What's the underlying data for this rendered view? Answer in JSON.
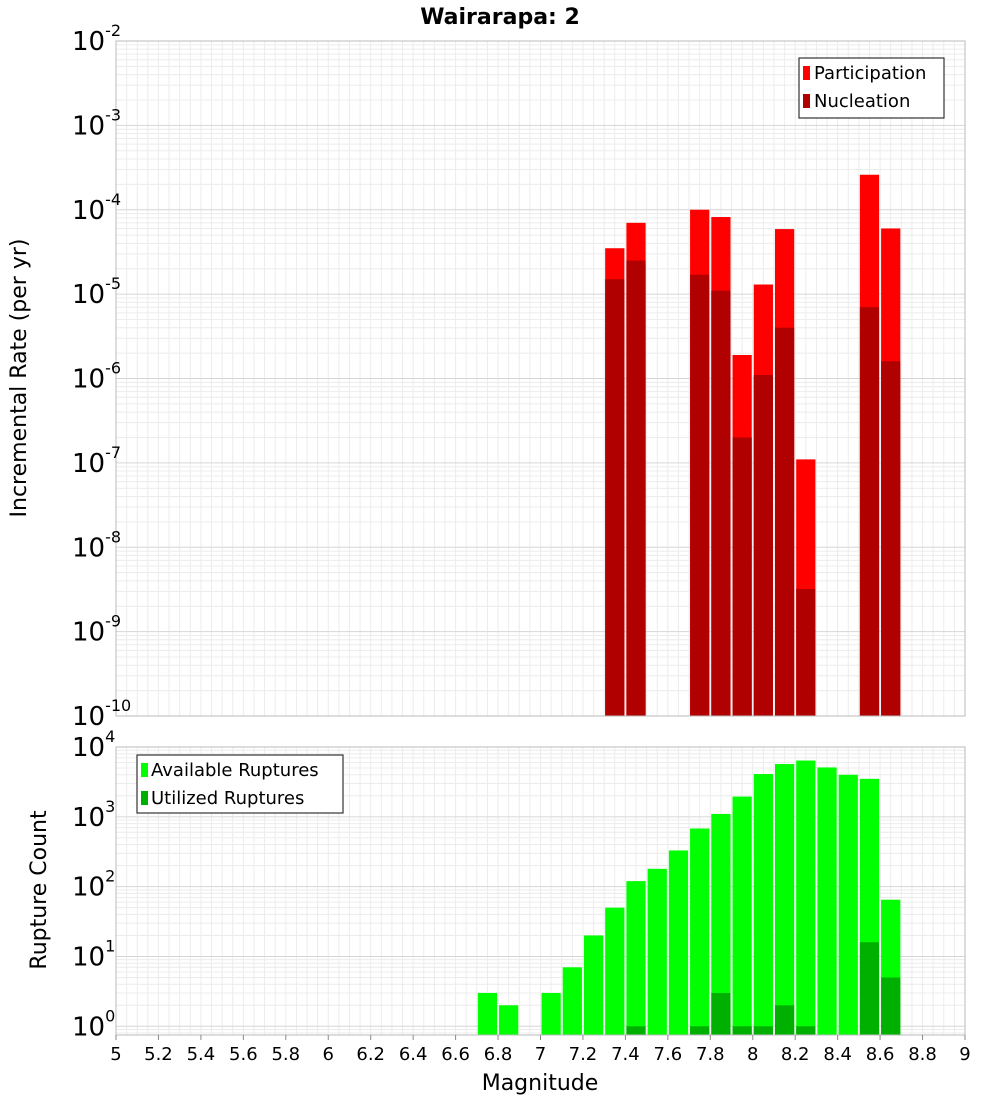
{
  "chart_data": [
    {
      "type": "bar",
      "title": "Wairarapa: 2",
      "xlabel": "Magnitude",
      "ylabel": "Incremental Rate (per yr)",
      "yscale": "log",
      "ylim": [
        1e-10,
        0.01
      ],
      "xlim": [
        5,
        9
      ],
      "x_ticks": [
        5,
        5.2,
        5.4,
        5.6,
        5.8,
        6,
        6.2,
        6.4,
        6.6,
        6.8,
        7,
        7.2,
        7.4,
        7.6,
        7.8,
        8,
        8.2,
        8.4,
        8.6,
        8.8,
        9
      ],
      "x_tick_labels": [
        "5",
        "5.2",
        "5.4",
        "5.6",
        "5.8",
        "6",
        "6.2",
        "6.4",
        "6.6",
        "6.8",
        "7",
        "7.2",
        "7.4",
        "7.6",
        "7.8",
        "8",
        "8.2",
        "8.4",
        "8.6",
        "8.8",
        "9"
      ],
      "y_ticks": [
        {
          "base": "10",
          "exp": "-2"
        },
        {
          "base": "10",
          "exp": "-3"
        },
        {
          "base": "10",
          "exp": "-4"
        },
        {
          "base": "10",
          "exp": "-5"
        },
        {
          "base": "10",
          "exp": "-6"
        },
        {
          "base": "10",
          "exp": "-7"
        },
        {
          "base": "10",
          "exp": "-8"
        },
        {
          "base": "10",
          "exp": "-9"
        },
        {
          "base": "10",
          "exp": "-10"
        }
      ],
      "legend": [
        {
          "label": "Participation",
          "color": "#ff0000"
        },
        {
          "label": "Nucleation",
          "color": "#b00000"
        }
      ],
      "legend_position": "top-right",
      "series": [
        {
          "name": "Participation",
          "color": "#ff0000",
          "x": [
            7.35,
            7.45,
            7.75,
            7.85,
            7.95,
            8.05,
            8.15,
            8.25,
            8.55,
            8.65
          ],
          "values": [
            3.5e-05,
            7e-05,
            0.0001,
            8.2e-05,
            1.9e-06,
            1.3e-05,
            5.9e-05,
            1.1e-07,
            0.00026,
            6e-05
          ]
        },
        {
          "name": "Nucleation",
          "color": "#b00000",
          "x": [
            7.35,
            7.45,
            7.75,
            7.85,
            7.95,
            8.05,
            8.15,
            8.25,
            8.55,
            8.65
          ],
          "values": [
            1.5e-05,
            2.5e-05,
            1.7e-05,
            1.1e-05,
            2e-07,
            1.1e-06,
            4e-06,
            3.2e-09,
            7e-06,
            1.6e-06
          ]
        }
      ]
    },
    {
      "type": "bar",
      "title": "",
      "xlabel": "Magnitude",
      "ylabel": "Rupture Count",
      "yscale": "log",
      "ylim": [
        0.75,
        10000
      ],
      "xlim": [
        5,
        9
      ],
      "y_ticks": [
        {
          "base": "10",
          "exp": "4"
        },
        {
          "base": "10",
          "exp": "3"
        },
        {
          "base": "10",
          "exp": "2"
        },
        {
          "base": "10",
          "exp": "1"
        },
        {
          "base": "10",
          "exp": "0"
        }
      ],
      "legend": [
        {
          "label": "Available Ruptures",
          "color": "#00ff00"
        },
        {
          "label": "Utilized Ruptures",
          "color": "#00b000"
        }
      ],
      "legend_position": "top-left",
      "series": [
        {
          "name": "Available Ruptures",
          "color": "#00ff00",
          "x": [
            6.75,
            6.85,
            7.05,
            7.15,
            7.25,
            7.35,
            7.45,
            7.55,
            7.65,
            7.75,
            7.85,
            7.95,
            8.05,
            8.15,
            8.25,
            8.35,
            8.45,
            8.55,
            8.65
          ],
          "values": [
            3,
            2,
            3,
            7,
            20,
            50,
            120,
            180,
            330,
            680,
            1100,
            1950,
            4100,
            5700,
            6400,
            5100,
            4000,
            3500,
            65
          ]
        },
        {
          "name": "Utilized Ruptures",
          "color": "#00b000",
          "x": [
            7.45,
            7.75,
            7.85,
            7.95,
            8.05,
            8.15,
            8.25,
            8.55,
            8.65
          ],
          "values": [
            1,
            1,
            3,
            1,
            1,
            2,
            1,
            16,
            5
          ]
        }
      ]
    }
  ]
}
